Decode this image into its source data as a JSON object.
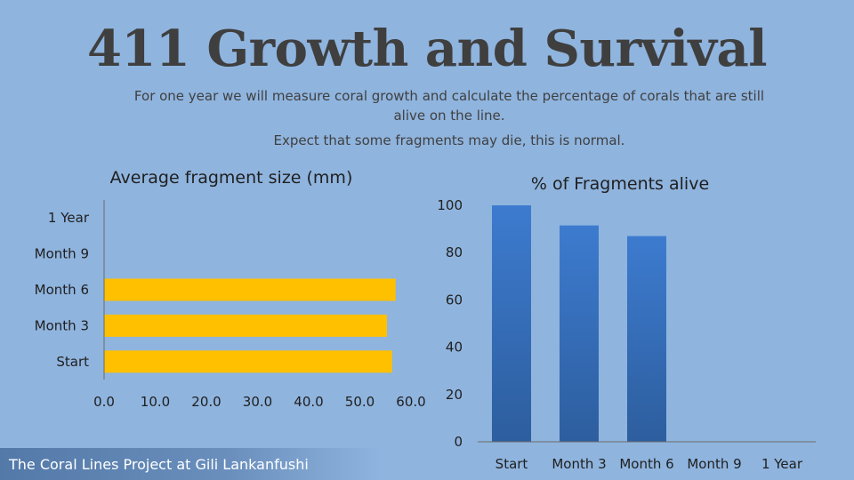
{
  "slide": {
    "title": "411 Growth and Survival",
    "subtitle_lines": [
      "For one year we will measure coral growth and calculate the percentage of corals that are still alive on the line.",
      "Expect that some fragments may die, this is normal."
    ],
    "footer": "The Coral Lines Project at Gili Lankanfushi"
  },
  "chart_data": [
    {
      "type": "bar",
      "orientation": "horizontal",
      "title": "Average fragment size (mm)",
      "categories": [
        "Start",
        "Month 3",
        "Month 6",
        "Month 9",
        "1 Year"
      ],
      "values": [
        56.3,
        55.3,
        57.0,
        null,
        null
      ],
      "xlim": [
        0,
        60
      ],
      "xticks": [
        "0.0",
        "10.0",
        "20.0",
        "30.0",
        "40.0",
        "50.0",
        "60.0"
      ],
      "bar_color": "#ffc000",
      "grid": false
    },
    {
      "type": "bar",
      "orientation": "vertical",
      "title": "% of Fragments alive",
      "categories": [
        "Start",
        "Month 3",
        "Month 6",
        "Month 9",
        "1 Year"
      ],
      "values": [
        100,
        91.5,
        87,
        null,
        null
      ],
      "ylim": [
        0,
        100
      ],
      "yticks": [
        "0",
        "20",
        "40",
        "60",
        "80",
        "100"
      ],
      "bar_color": "#3a75c4",
      "grid": false
    }
  ]
}
